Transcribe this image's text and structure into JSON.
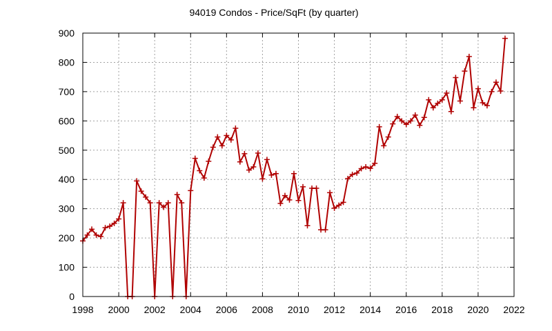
{
  "chart_data": {
    "type": "line",
    "title": "94019 Condos - Price/SqFt (by quarter)",
    "xlabel": "",
    "ylabel": "",
    "xlim": [
      1998,
      2022
    ],
    "ylim": [
      0,
      900
    ],
    "xticks": [
      1998,
      2000,
      2002,
      2004,
      2006,
      2008,
      2010,
      2012,
      2014,
      2016,
      2018,
      2020,
      2022
    ],
    "yticks": [
      0,
      100,
      200,
      300,
      400,
      500,
      600,
      700,
      800,
      900
    ],
    "grid": true,
    "line_color": "#b00000",
    "series": [
      {
        "marker": "plus",
        "x": [
          1998.0,
          1998.25,
          1998.5,
          1998.75,
          1999.0,
          1999.25,
          1999.5,
          1999.75,
          2000.0,
          2000.25,
          2000.5,
          2000.75,
          2001.0,
          2001.25,
          2001.5,
          2001.75,
          2002.0,
          2002.25,
          2002.5,
          2002.75,
          2003.0,
          2003.25,
          2003.5,
          2003.75,
          2004.0,
          2004.25,
          2004.5,
          2004.75,
          2005.0,
          2005.25,
          2005.5,
          2005.75,
          2006.0,
          2006.25,
          2006.5,
          2006.75,
          2007.0,
          2007.25,
          2007.5,
          2007.75,
          2008.0,
          2008.25,
          2008.5,
          2008.75,
          2009.0,
          2009.25,
          2009.5,
          2009.75,
          2010.0,
          2010.25,
          2010.5,
          2010.75,
          2011.0,
          2011.25,
          2011.5,
          2011.75,
          2012.0,
          2012.25,
          2012.5,
          2012.75,
          2013.0,
          2013.25,
          2013.5,
          2013.75,
          2014.0,
          2014.25,
          2014.5,
          2014.75,
          2015.0,
          2015.25,
          2015.5,
          2015.75,
          2016.0,
          2016.25,
          2016.5,
          2016.75,
          2017.0,
          2017.25,
          2017.5,
          2017.75,
          2018.0,
          2018.25,
          2018.5,
          2018.75,
          2019.0,
          2019.25,
          2019.5,
          2019.75,
          2020.0,
          2020.25,
          2020.5,
          2020.75,
          2021.0,
          2021.25,
          2021.5
        ],
        "y": [
          190,
          210,
          230,
          210,
          205,
          235,
          240,
          250,
          265,
          320,
          0,
          0,
          395,
          360,
          340,
          320,
          0,
          320,
          305,
          320,
          0,
          348,
          320,
          0,
          362,
          472,
          430,
          405,
          462,
          510,
          545,
          515,
          550,
          535,
          575,
          460,
          488,
          432,
          443,
          490,
          402,
          468,
          415,
          420,
          318,
          345,
          330,
          420,
          328,
          375,
          242,
          370,
          370,
          228,
          228,
          355,
          302,
          312,
          322,
          403,
          417,
          422,
          437,
          443,
          438,
          455,
          580,
          515,
          545,
          590,
          615,
          600,
          588,
          600,
          620,
          585,
          612,
          672,
          645,
          660,
          672,
          695,
          632,
          748,
          668,
          770,
          820,
          645,
          710,
          662,
          652,
          700,
          732,
          702,
          882
        ]
      }
    ]
  }
}
